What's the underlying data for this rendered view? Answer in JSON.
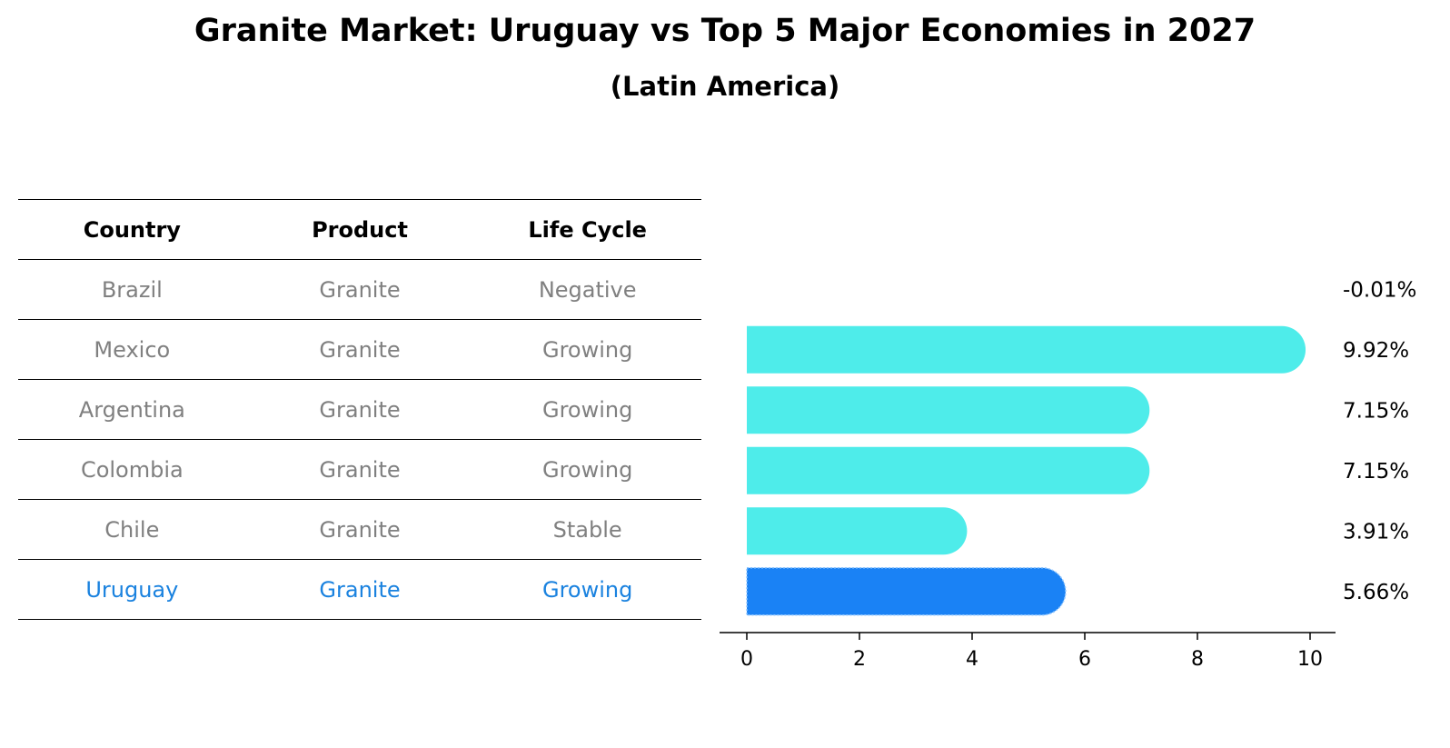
{
  "header": {
    "title": "Granite Market: Uruguay vs Top 5 Major Economies in 2027",
    "subtitle": "(Latin America)"
  },
  "table": {
    "columns": [
      "Country",
      "Product",
      "Life Cycle"
    ],
    "rows": [
      [
        "Brazil",
        "Granite",
        "Negative"
      ],
      [
        "Mexico",
        "Granite",
        "Growing"
      ],
      [
        "Argentina",
        "Granite",
        "Growing"
      ],
      [
        "Colombia",
        "Granite",
        "Growing"
      ],
      [
        "Chile",
        "Granite",
        "Stable"
      ],
      [
        "Uruguay",
        "Granite",
        "Growing"
      ]
    ],
    "highlight_country": "Uruguay"
  },
  "colors": {
    "bar": "#4eecea",
    "highlight_bar": "#1a82f5",
    "highlight_text": "#1a82df",
    "muted_text": "#808080"
  },
  "chart_data": {
    "type": "bar",
    "orientation": "horizontal",
    "categories": [
      "Brazil",
      "Mexico",
      "Argentina",
      "Colombia",
      "Chile",
      "Uruguay"
    ],
    "values": [
      -0.01,
      9.92,
      7.15,
      7.15,
      3.91,
      5.66
    ],
    "value_labels": [
      "-0.01%",
      "9.92%",
      "7.15%",
      "7.15%",
      "3.91%",
      "5.66%"
    ],
    "highlight": "Uruguay",
    "xlim": [
      -0.5,
      10.4
    ],
    "xticks": [
      0,
      2,
      4,
      6,
      8,
      10
    ],
    "xlabel": "",
    "ylabel": "",
    "grid": false
  }
}
